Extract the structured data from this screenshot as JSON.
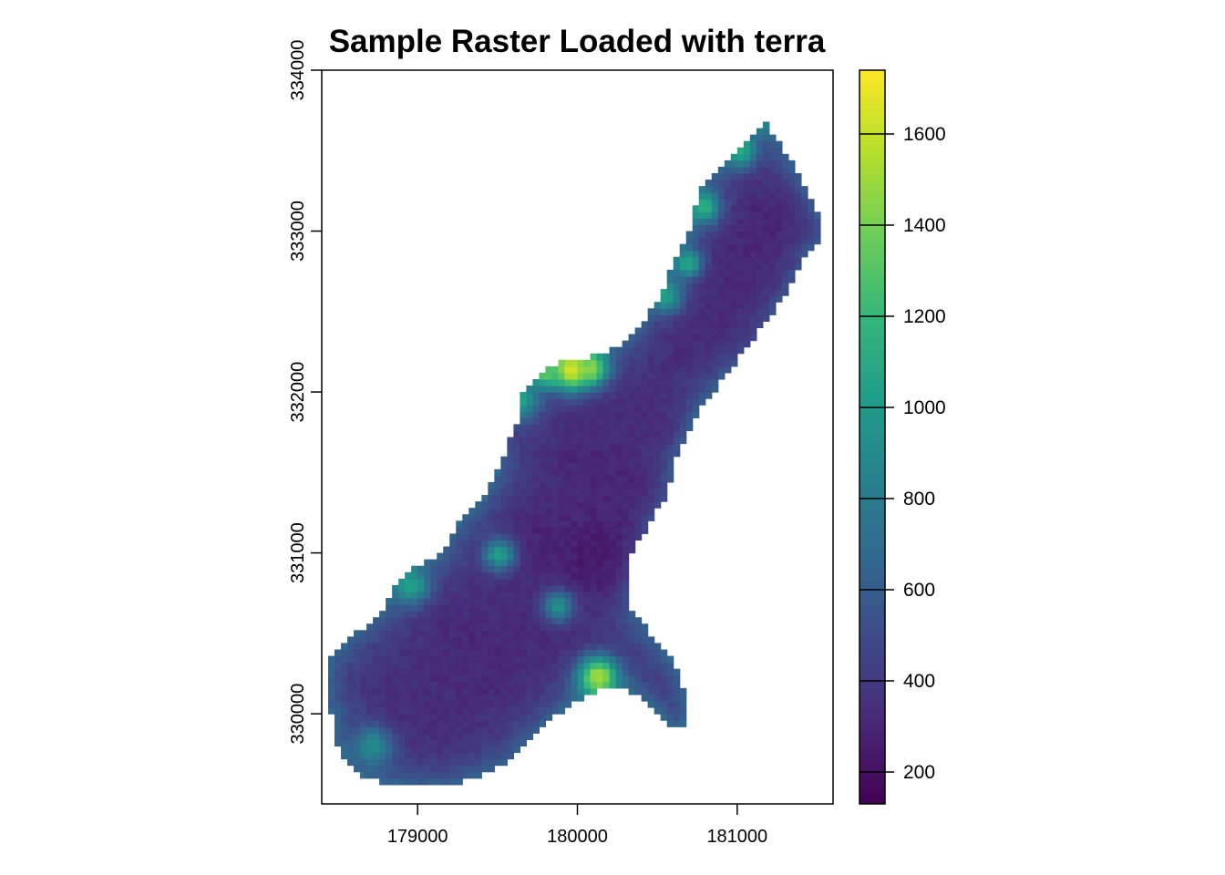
{
  "chart_data": {
    "type": "heatmap",
    "title": "Sample Raster Loaded with terra",
    "xlabel": "",
    "ylabel": "",
    "xlim": [
      178400,
      181600
    ],
    "ylim": [
      329440,
      334000
    ],
    "x_ticks": [
      179000,
      180000,
      181000
    ],
    "y_ticks": [
      330000,
      331000,
      332000,
      333000,
      334000
    ],
    "x_tick_labels": [
      "179000",
      "180000",
      "181000"
    ],
    "y_tick_labels": [
      "330000",
      "331000",
      "332000",
      "333000",
      "334000"
    ],
    "legend": {
      "position": "right",
      "range": [
        130,
        1740
      ],
      "ticks": [
        200,
        400,
        600,
        800,
        1000,
        1200,
        1400,
        1600
      ],
      "tick_labels": [
        "200",
        "400",
        "600",
        "800",
        "1000",
        "1200",
        "1400",
        "1600"
      ],
      "colormap": [
        "#440154",
        "#482878",
        "#3e4989",
        "#31688e",
        "#26828e",
        "#1f9e89",
        "#35b779",
        "#6ece58",
        "#b5de2b",
        "#fde725"
      ]
    },
    "grid": false,
    "cell_size": 40,
    "outline": [
      [
        178480,
        330020
      ],
      [
        178440,
        330000
      ],
      [
        178440,
        330320
      ],
      [
        178540,
        330440
      ],
      [
        178760,
        330620
      ],
      [
        178880,
        330820
      ],
      [
        179000,
        330920
      ],
      [
        179150,
        331000
      ],
      [
        179230,
        331150
      ],
      [
        179400,
        331320
      ],
      [
        179500,
        331500
      ],
      [
        179560,
        331650
      ],
      [
        179620,
        331800
      ],
      [
        179660,
        332000
      ],
      [
        179760,
        332120
      ],
      [
        179900,
        332180
      ],
      [
        180100,
        332220
      ],
      [
        180180,
        332250
      ],
      [
        180280,
        332300
      ],
      [
        180400,
        332420
      ],
      [
        180520,
        332600
      ],
      [
        180560,
        332700
      ],
      [
        180700,
        333000
      ],
      [
        180760,
        333250
      ],
      [
        180880,
        333400
      ],
      [
        181020,
        333530
      ],
      [
        181180,
        333680
      ],
      [
        181260,
        333560
      ],
      [
        181360,
        333400
      ],
      [
        181420,
        333280
      ],
      [
        181520,
        333080
      ],
      [
        181540,
        332990
      ],
      [
        181420,
        332820
      ],
      [
        181300,
        332600
      ],
      [
        181150,
        332400
      ],
      [
        181000,
        332200
      ],
      [
        180850,
        332000
      ],
      [
        180770,
        331900
      ],
      [
        180640,
        331650
      ],
      [
        180550,
        331350
      ],
      [
        180400,
        331100
      ],
      [
        180340,
        331000
      ],
      [
        180330,
        330850
      ],
      [
        180340,
        330650
      ],
      [
        180500,
        330450
      ],
      [
        180620,
        330300
      ],
      [
        180700,
        330040
      ],
      [
        180660,
        329930
      ],
      [
        180590,
        329930
      ],
      [
        180500,
        330020
      ],
      [
        180330,
        330140
      ],
      [
        180150,
        330160
      ],
      [
        179980,
        330080
      ],
      [
        179850,
        329980
      ],
      [
        179680,
        329820
      ],
      [
        179580,
        329700
      ],
      [
        179400,
        329620
      ],
      [
        179200,
        329560
      ],
      [
        179000,
        329540
      ],
      [
        178800,
        329570
      ],
      [
        178600,
        329640
      ],
      [
        178530,
        329750
      ],
      [
        178470,
        329880
      ]
    ],
    "hotspots": [
      {
        "x": 180130,
        "y": 330230,
        "value": 1550,
        "r": 90
      },
      {
        "x": 179960,
        "y": 332140,
        "value": 1700,
        "r": 90
      },
      {
        "x": 180090,
        "y": 332150,
        "value": 1450,
        "r": 70
      },
      {
        "x": 179800,
        "y": 332120,
        "value": 1350,
        "r": 60
      },
      {
        "x": 179510,
        "y": 330990,
        "value": 1050,
        "r": 70
      },
      {
        "x": 178960,
        "y": 330800,
        "value": 1050,
        "r": 80
      },
      {
        "x": 179880,
        "y": 330670,
        "value": 950,
        "r": 70
      },
      {
        "x": 178720,
        "y": 329800,
        "value": 900,
        "r": 90
      },
      {
        "x": 179640,
        "y": 331950,
        "value": 1050,
        "r": 80
      },
      {
        "x": 180550,
        "y": 332600,
        "value": 1050,
        "r": 70
      },
      {
        "x": 180690,
        "y": 332800,
        "value": 1100,
        "r": 60
      },
      {
        "x": 180790,
        "y": 333150,
        "value": 1150,
        "r": 70
      },
      {
        "x": 181020,
        "y": 333500,
        "value": 1100,
        "r": 70
      },
      {
        "x": 181200,
        "y": 333690,
        "value": 950,
        "r": 60
      }
    ],
    "lows": [
      {
        "x": 180200,
        "y": 331050,
        "value": 180,
        "r": 200
      },
      {
        "x": 180100,
        "y": 330900,
        "value": 200,
        "r": 150
      },
      {
        "x": 179700,
        "y": 331100,
        "value": 260,
        "r": 160
      },
      {
        "x": 180350,
        "y": 331400,
        "value": 240,
        "r": 160
      },
      {
        "x": 180000,
        "y": 331600,
        "value": 280,
        "r": 160
      },
      {
        "x": 179600,
        "y": 331750,
        "value": 300,
        "r": 110
      },
      {
        "x": 179300,
        "y": 330500,
        "value": 300,
        "r": 150
      },
      {
        "x": 179500,
        "y": 330200,
        "value": 290,
        "r": 150
      },
      {
        "x": 179100,
        "y": 330000,
        "value": 320,
        "r": 160
      },
      {
        "x": 179800,
        "y": 330500,
        "value": 300,
        "r": 130
      },
      {
        "x": 180620,
        "y": 332300,
        "value": 300,
        "r": 160
      },
      {
        "x": 181000,
        "y": 332400,
        "value": 280,
        "r": 180
      },
      {
        "x": 181100,
        "y": 332800,
        "value": 250,
        "r": 200
      },
      {
        "x": 181250,
        "y": 333100,
        "value": 260,
        "r": 160
      },
      {
        "x": 180500,
        "y": 331800,
        "value": 300,
        "r": 140
      }
    ]
  }
}
